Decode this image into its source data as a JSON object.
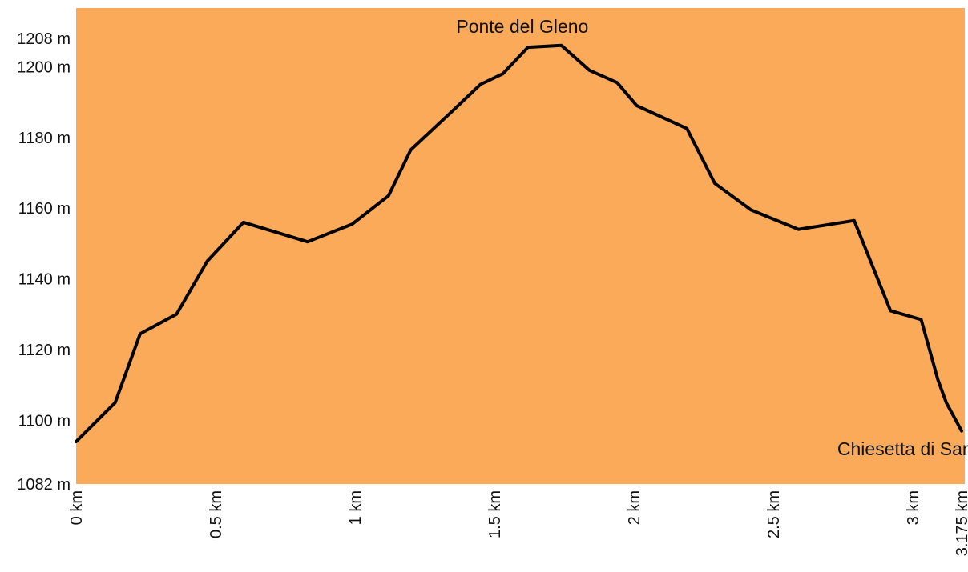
{
  "chart_data": {
    "type": "area",
    "title": "",
    "xlabel": "",
    "ylabel": "",
    "xlim": [
      0,
      3.175
    ],
    "ylim": [
      1082,
      1208
    ],
    "grid": false,
    "legend": "none",
    "colors": {
      "fill": "#fbaa5a",
      "line": "#000000",
      "background": "#ffffff",
      "text": "#111111"
    },
    "y_ticks": [
      {
        "value": 1082,
        "label": "1082 m"
      },
      {
        "value": 1100,
        "label": "1100 m"
      },
      {
        "value": 1120,
        "label": "1120 m"
      },
      {
        "value": 1140,
        "label": "1140 m"
      },
      {
        "value": 1160,
        "label": "1160 m"
      },
      {
        "value": 1180,
        "label": "1180 m"
      },
      {
        "value": 1200,
        "label": "1200 m"
      },
      {
        "value": 1208,
        "label": "1208 m"
      }
    ],
    "x_ticks": [
      {
        "value": 0,
        "label": "0 km"
      },
      {
        "value": 0.5,
        "label": "0.5 km"
      },
      {
        "value": 1,
        "label": "1 km"
      },
      {
        "value": 1.5,
        "label": "1.5 km"
      },
      {
        "value": 2,
        "label": "2 km"
      },
      {
        "value": 2.5,
        "label": "2.5 km"
      },
      {
        "value": 3,
        "label": "3 km"
      },
      {
        "value": 3.175,
        "label": "3.175 km"
      }
    ],
    "annotations": [
      {
        "text": "Ponte del Gleno",
        "x": 1.6,
        "y": 1205.5
      },
      {
        "text": "Chiesetta di San Carlo",
        "x": 3.06,
        "y": 1092
      }
    ],
    "series": [
      {
        "x": [
          0,
          0.14,
          0.23,
          0.36,
          0.47,
          0.6,
          0.83,
          0.99,
          1.12,
          1.2,
          1.35,
          1.45,
          1.53,
          1.62,
          1.74,
          1.84,
          1.94,
          2.01,
          2.19,
          2.29,
          2.42,
          2.59,
          2.79,
          2.92,
          3.03,
          3.09,
          3.12,
          3.175
        ],
        "y": [
          1094,
          1105,
          1124.5,
          1130,
          1145,
          1156,
          1150.5,
          1155.5,
          1163.5,
          1176.5,
          1187.5,
          1195,
          1198,
          1205.5,
          1206,
          1199,
          1195.5,
          1189,
          1182.5,
          1167,
          1159.5,
          1154,
          1156.5,
          1131,
          1128.5,
          1111.5,
          1105,
          1097
        ]
      }
    ]
  }
}
